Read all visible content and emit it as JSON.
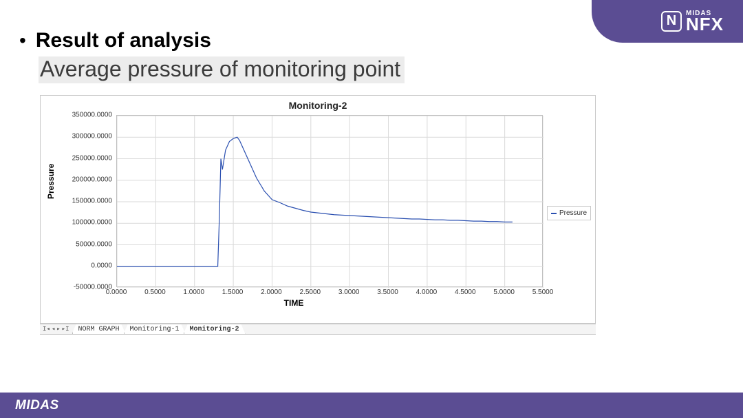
{
  "branding": {
    "logo_letter": "N",
    "logo_small": "MIDAS",
    "logo_big": "NFX",
    "footer_text": "MIDAS"
  },
  "heading": "Result of analysis",
  "subheading": "Average pressure of monitoring point",
  "chart": {
    "type": "line",
    "title": "Monitoring-2",
    "x_label": "TIME",
    "y_label": "Pressure",
    "legend_label": "Pressure",
    "line_color": "#2a4fb0",
    "line_width": 1.2,
    "grid_color": "#d9d9d9",
    "border_color": "#bfbfbf",
    "background_color": "#ffffff",
    "title_fontsize": 14,
    "label_fontsize": 12,
    "tick_fontsize": 10,
    "xlim": [
      0.0,
      5.5
    ],
    "ylim": [
      -50000,
      350000
    ],
    "x_ticks": [
      "0.0000",
      "0.5000",
      "1.0000",
      "1.5000",
      "2.0000",
      "2.5000",
      "3.0000",
      "3.5000",
      "4.0000",
      "4.5000",
      "5.0000",
      "5.5000"
    ],
    "x_tick_vals": [
      0.0,
      0.5,
      1.0,
      1.5,
      2.0,
      2.5,
      3.0,
      3.5,
      4.0,
      4.5,
      5.0,
      5.5
    ],
    "y_ticks": [
      "-50000.0000",
      "0.0000",
      "50000.0000",
      "100000.0000",
      "150000.0000",
      "200000.0000",
      "250000.0000",
      "300000.0000",
      "350000.0000"
    ],
    "y_tick_vals": [
      -50000,
      0,
      50000,
      100000,
      150000,
      200000,
      250000,
      300000,
      350000
    ],
    "series": {
      "x": [
        0.0,
        0.2,
        0.4,
        0.6,
        0.8,
        1.0,
        1.2,
        1.3,
        1.32,
        1.34,
        1.36,
        1.4,
        1.45,
        1.5,
        1.55,
        1.58,
        1.6,
        1.65,
        1.7,
        1.75,
        1.8,
        1.85,
        1.9,
        2.0,
        2.1,
        2.2,
        2.3,
        2.4,
        2.5,
        2.6,
        2.7,
        2.8,
        2.9,
        3.0,
        3.1,
        3.2,
        3.3,
        3.4,
        3.5,
        3.6,
        3.7,
        3.8,
        3.9,
        4.0,
        4.1,
        4.2,
        4.3,
        4.4,
        4.5,
        4.6,
        4.7,
        4.8,
        4.9,
        5.0,
        5.1
      ],
      "y": [
        0,
        0,
        0,
        0,
        0,
        0,
        0,
        0,
        110000,
        250000,
        225000,
        270000,
        290000,
        297000,
        300000,
        293000,
        285000,
        265000,
        245000,
        225000,
        205000,
        190000,
        175000,
        155000,
        148000,
        140000,
        135000,
        130000,
        126000,
        124000,
        122000,
        120000,
        119000,
        118000,
        117000,
        116000,
        115000,
        114000,
        113000,
        112000,
        111000,
        110000,
        110000,
        109000,
        108000,
        108000,
        107000,
        107000,
        106000,
        105000,
        105000,
        104000,
        104000,
        103000,
        103000
      ]
    }
  },
  "tabs": {
    "items": [
      "NORM GRAPH",
      "Monitoring-1",
      "Monitoring-2"
    ],
    "active_index": 2
  },
  "colors": {
    "brand_purple": "#5b4d93",
    "subhead_bg": "#ececec",
    "text": "#000000"
  }
}
